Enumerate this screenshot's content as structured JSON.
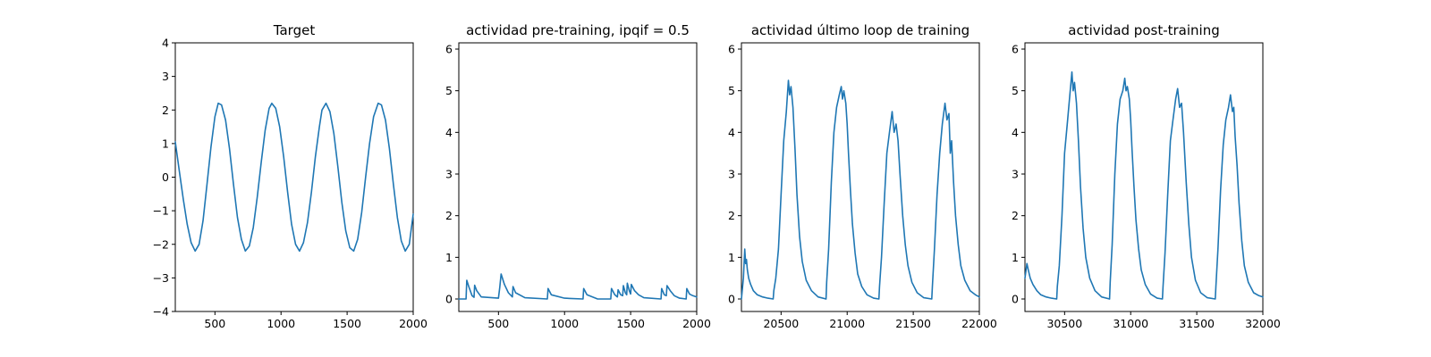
{
  "colors": {
    "series": "#1f77b4",
    "frame": "#000000",
    "background": "#ffffff"
  },
  "chart_data": [
    {
      "type": "line",
      "title": "Target",
      "xlabel": "",
      "ylabel": "",
      "xlim": [
        200,
        2000
      ],
      "ylim": [
        -4,
        4
      ],
      "xticks": [
        500,
        1000,
        1500,
        2000
      ],
      "yticks": [
        -4,
        -3,
        -2,
        -1,
        0,
        1,
        2,
        3,
        4
      ],
      "grid": false,
      "series": [
        {
          "x": [
            200,
            230,
            260,
            290,
            320,
            350,
            380,
            410,
            440,
            470,
            500,
            525,
            550,
            580,
            610,
            640,
            670,
            700,
            730,
            760,
            790,
            820,
            850,
            880,
            910,
            930,
            960,
            990,
            1020,
            1050,
            1080,
            1110,
            1140,
            1170,
            1200,
            1230,
            1260,
            1290,
            1310,
            1340,
            1370,
            1400,
            1430,
            1460,
            1490,
            1520,
            1550,
            1580,
            1610,
            1640,
            1670,
            1700,
            1735,
            1760,
            1790,
            1820,
            1850,
            1880,
            1910,
            1940,
            1970,
            2000
          ],
          "y": [
            1.05,
            0.2,
            -0.65,
            -1.4,
            -1.95,
            -2.2,
            -2.0,
            -1.3,
            -0.2,
            0.9,
            1.8,
            2.2,
            2.15,
            1.7,
            0.85,
            -0.2,
            -1.2,
            -1.85,
            -2.2,
            -2.05,
            -1.5,
            -0.6,
            0.45,
            1.4,
            2.05,
            2.2,
            2.05,
            1.5,
            0.6,
            -0.45,
            -1.4,
            -2.0,
            -2.2,
            -1.95,
            -1.35,
            -0.45,
            0.6,
            1.5,
            2.0,
            2.2,
            1.95,
            1.3,
            0.3,
            -0.75,
            -1.6,
            -2.1,
            -2.2,
            -1.85,
            -1.05,
            0.0,
            1.0,
            1.8,
            2.2,
            2.15,
            1.7,
            0.85,
            -0.2,
            -1.2,
            -1.9,
            -2.2,
            -2.0,
            -1.1
          ]
        }
      ]
    },
    {
      "type": "line",
      "title": "actividad pre-training, ipqif = 0.5",
      "xlabel": "",
      "ylabel": "",
      "xlim": [
        200,
        2000
      ],
      "ylim": [
        -0.3,
        6.15
      ],
      "xticks": [
        500,
        1000,
        1500,
        2000
      ],
      "yticks": [
        0,
        1,
        2,
        3,
        4,
        5,
        6
      ],
      "grid": false,
      "series": [
        {
          "x": [
            200,
            255,
            260,
            275,
            300,
            315,
            320,
            335,
            370,
            500,
            510,
            520,
            545,
            575,
            605,
            610,
            630,
            700,
            870,
            875,
            900,
            1000,
            1140,
            1145,
            1170,
            1250,
            1350,
            1355,
            1380,
            1400,
            1405,
            1425,
            1440,
            1445,
            1460,
            1470,
            1475,
            1490,
            1500,
            1505,
            1530,
            1560,
            1600,
            1730,
            1735,
            1755,
            1770,
            1775,
            1800,
            1830,
            1870,
            1920,
            1925,
            1945,
            1970,
            2000
          ],
          "y": [
            0.0,
            0.0,
            0.45,
            0.3,
            0.08,
            0.04,
            0.33,
            0.2,
            0.05,
            0.02,
            0.28,
            0.6,
            0.35,
            0.15,
            0.05,
            0.3,
            0.15,
            0.03,
            0.0,
            0.25,
            0.1,
            0.02,
            0.0,
            0.25,
            0.1,
            0.0,
            0.0,
            0.25,
            0.1,
            0.05,
            0.22,
            0.1,
            0.08,
            0.32,
            0.15,
            0.1,
            0.38,
            0.2,
            0.12,
            0.35,
            0.2,
            0.1,
            0.03,
            0.0,
            0.25,
            0.1,
            0.08,
            0.32,
            0.2,
            0.08,
            0.02,
            0.0,
            0.25,
            0.12,
            0.08,
            0.05
          ]
        }
      ]
    },
    {
      "type": "line",
      "title": "actividad último loop de training",
      "xlabel": "",
      "ylabel": "",
      "xlim": [
        20200,
        22000
      ],
      "ylim": [
        -0.3,
        6.15
      ],
      "xticks": [
        20500,
        21000,
        21500,
        22000
      ],
      "yticks": [
        0,
        1,
        2,
        3,
        4,
        5,
        6
      ],
      "grid": false,
      "series": [
        {
          "x": [
            20200,
            20215,
            20225,
            20232,
            20238,
            20245,
            20255,
            20270,
            20290,
            20320,
            20360,
            20400,
            20440,
            20445,
            20460,
            20480,
            20500,
            20520,
            20540,
            20555,
            20565,
            20575,
            20590,
            20605,
            20620,
            20640,
            20660,
            20690,
            20730,
            20780,
            20840,
            20845,
            20860,
            20880,
            20900,
            20920,
            20940,
            20955,
            20965,
            20975,
            20990,
            21000,
            21010,
            21025,
            21040,
            21060,
            21080,
            21110,
            21150,
            21200,
            21240,
            21245,
            21260,
            21280,
            21300,
            21320,
            21340,
            21355,
            21370,
            21385,
            21400,
            21420,
            21440,
            21460,
            21490,
            21530,
            21580,
            21640,
            21645,
            21660,
            21680,
            21700,
            21720,
            21740,
            21755,
            21770,
            21780,
            21790,
            21805,
            21820,
            21840,
            21860,
            21890,
            21930,
            21970,
            22000
          ],
          "y": [
            0.0,
            0.5,
            1.2,
            0.85,
            0.95,
            0.7,
            0.5,
            0.35,
            0.2,
            0.1,
            0.05,
            0.02,
            0.0,
            0.2,
            0.5,
            1.2,
            2.5,
            3.8,
            4.5,
            5.25,
            4.9,
            5.1,
            4.6,
            3.6,
            2.5,
            1.5,
            0.9,
            0.45,
            0.2,
            0.05,
            0.0,
            0.4,
            1.2,
            2.8,
            4.0,
            4.6,
            4.9,
            5.1,
            4.8,
            5.0,
            4.7,
            4.2,
            3.5,
            2.6,
            1.8,
            1.1,
            0.6,
            0.3,
            0.1,
            0.02,
            0.0,
            0.3,
            1.0,
            2.3,
            3.5,
            4.0,
            4.5,
            4.0,
            4.2,
            3.8,
            3.0,
            2.0,
            1.3,
            0.8,
            0.4,
            0.15,
            0.03,
            0.0,
            0.3,
            1.2,
            2.5,
            3.5,
            4.2,
            4.7,
            4.3,
            4.45,
            3.5,
            3.8,
            2.8,
            2.0,
            1.3,
            0.8,
            0.45,
            0.2,
            0.1,
            0.05
          ]
        }
      ]
    },
    {
      "type": "line",
      "title": "actividad post-training",
      "xlabel": "",
      "ylabel": "",
      "xlim": [
        30200,
        32000
      ],
      "ylim": [
        -0.3,
        6.15
      ],
      "xticks": [
        30500,
        31000,
        31500,
        32000
      ],
      "yticks": [
        0,
        1,
        2,
        3,
        4,
        5,
        6
      ],
      "grid": false,
      "series": [
        {
          "x": [
            30200,
            30215,
            30225,
            30240,
            30260,
            30290,
            30320,
            30360,
            30400,
            30440,
            30445,
            30460,
            30480,
            30500,
            30520,
            30540,
            30555,
            30565,
            30575,
            30590,
            30605,
            30620,
            30640,
            30660,
            30690,
            30730,
            30780,
            30840,
            30845,
            30860,
            30880,
            30900,
            30920,
            30940,
            30955,
            30965,
            30975,
            30990,
            31000,
            31010,
            31025,
            31040,
            31060,
            31080,
            31110,
            31150,
            31200,
            31240,
            31245,
            31260,
            31280,
            31300,
            31320,
            31340,
            31355,
            31370,
            31385,
            31400,
            31420,
            31440,
            31460,
            31490,
            31530,
            31580,
            31640,
            31645,
            31660,
            31680,
            31700,
            31720,
            31740,
            31755,
            31770,
            31780,
            31790,
            31805,
            31820,
            31840,
            31860,
            31890,
            31930,
            31970,
            32000
          ],
          "y": [
            0.5,
            0.85,
            0.7,
            0.5,
            0.35,
            0.2,
            0.1,
            0.05,
            0.02,
            0.0,
            0.3,
            0.8,
            2.0,
            3.5,
            4.2,
            4.9,
            5.45,
            5.0,
            5.2,
            4.7,
            3.8,
            2.7,
            1.7,
            1.0,
            0.5,
            0.2,
            0.05,
            0.0,
            0.4,
            1.3,
            3.0,
            4.2,
            4.8,
            5.0,
            5.3,
            5.0,
            5.1,
            4.8,
            4.3,
            3.6,
            2.7,
            1.9,
            1.2,
            0.7,
            0.35,
            0.12,
            0.02,
            0.0,
            0.3,
            1.1,
            2.5,
            3.8,
            4.3,
            4.8,
            5.05,
            4.6,
            4.7,
            4.0,
            2.8,
            1.8,
            1.0,
            0.45,
            0.15,
            0.03,
            0.0,
            0.3,
            1.2,
            2.6,
            3.7,
            4.3,
            4.6,
            4.9,
            4.5,
            4.6,
            3.9,
            3.2,
            2.3,
            1.4,
            0.8,
            0.4,
            0.15,
            0.08,
            0.05
          ]
        }
      ]
    }
  ]
}
